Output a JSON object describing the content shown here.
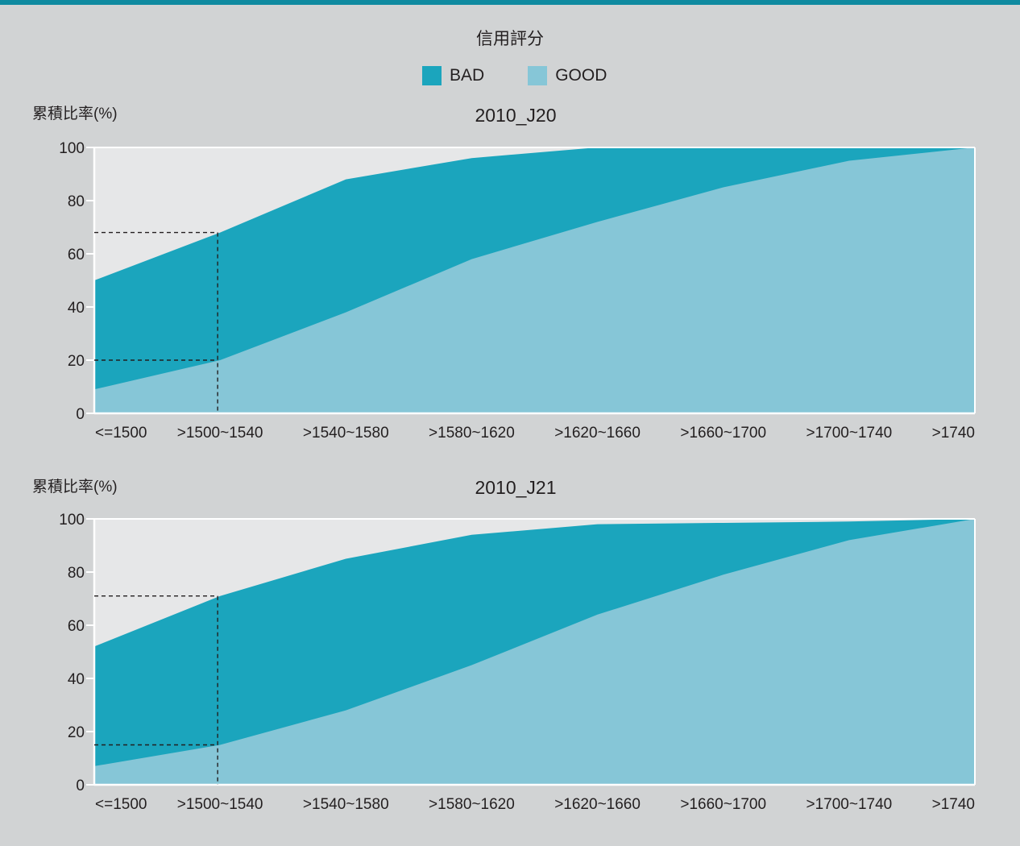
{
  "header": {
    "title": "信用評分"
  },
  "legend": [
    {
      "label": "BAD",
      "color": "#1ba5bd"
    },
    {
      "label": "GOOD",
      "color": "#86c6d7"
    }
  ],
  "colors": {
    "bad": "#1ba5bd",
    "good": "#86c6d7",
    "plot_bg": "#e6e7e8",
    "page_bg": "#d1d3d4",
    "top_bar": "#0f8aa0"
  },
  "chart_data": [
    {
      "type": "area",
      "title": "2010_J20",
      "ylabel": "累積比率(%)",
      "xlabel": "",
      "ylim": [
        0,
        100
      ],
      "yticks": [
        0,
        20,
        40,
        60,
        80,
        100
      ],
      "categories": [
        "<=1500",
        ">1500~1540",
        ">1540~1580",
        ">1580~1620",
        ">1620~1660",
        ">1660~1700",
        ">1700~1740",
        ">1740"
      ],
      "series": [
        {
          "name": "BAD",
          "values": [
            50,
            68,
            88,
            96,
            100,
            100,
            100,
            100
          ]
        },
        {
          "name": "GOOD",
          "values": [
            9,
            20,
            38,
            58,
            72,
            85,
            95,
            100
          ]
        }
      ],
      "reference": {
        "category": ">1500~1540",
        "bad": 68,
        "good": 20
      }
    },
    {
      "type": "area",
      "title": "2010_J21",
      "ylabel": "累積比率(%)",
      "xlabel": "",
      "ylim": [
        0,
        100
      ],
      "yticks": [
        0,
        20,
        40,
        60,
        80,
        100
      ],
      "categories": [
        "<=1500",
        ">1500~1540",
        ">1540~1580",
        ">1580~1620",
        ">1620~1660",
        ">1660~1700",
        ">1700~1740",
        ">1740"
      ],
      "series": [
        {
          "name": "BAD",
          "values": [
            52,
            71,
            85,
            94,
            98,
            98.5,
            99,
            100
          ]
        },
        {
          "name": "GOOD",
          "values": [
            7,
            15,
            28,
            45,
            64,
            79,
            92,
            100
          ]
        }
      ],
      "reference": {
        "category": ">1500~1540",
        "bad": 71,
        "good": 15
      }
    }
  ]
}
